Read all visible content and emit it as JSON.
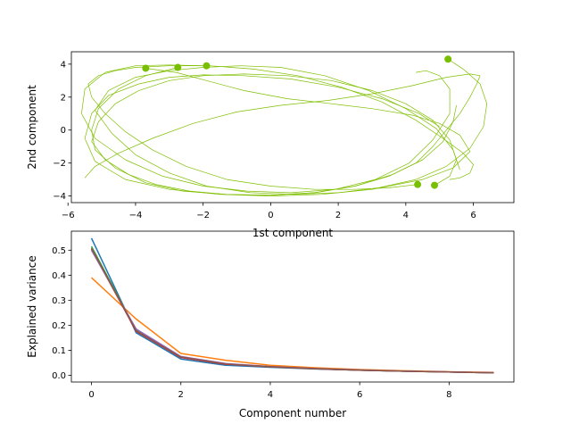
{
  "chart_data": [
    {
      "type": "line",
      "xlabel": "1st component",
      "ylabel": "2nd component",
      "xlim": [
        -5.9,
        7.2
      ],
      "ylim": [
        -4.4,
        4.75
      ],
      "xticks": [
        -6,
        -4,
        -2,
        0,
        2,
        4,
        6
      ],
      "yticks": [
        -4,
        -2,
        0,
        2,
        4
      ],
      "grid": false,
      "line_color": "#7fbf00",
      "marker_color": "#77bf00",
      "start_points": [
        {
          "x": -3.7,
          "y": 3.75
        },
        {
          "x": -2.75,
          "y": 3.8
        },
        {
          "x": -1.9,
          "y": 3.9
        },
        {
          "x": 5.25,
          "y": 4.3
        },
        {
          "x": 4.35,
          "y": -3.3
        },
        {
          "x": 4.85,
          "y": -3.35
        }
      ],
      "series": [
        {
          "x": [
            -3.7,
            -2.8,
            -1.9,
            -0.8,
            0.5,
            1.8,
            3.0,
            4.2,
            5.0,
            5.6,
            5.9,
            5.4,
            4.5,
            3.0,
            1.5,
            0.0,
            -1.5,
            -3.0,
            -4.3,
            -5.2,
            -5.5,
            -5.3,
            -4.8,
            -3.9,
            -3.0,
            -2.0,
            -0.8,
            0.6,
            2.0,
            3.3,
            4.4,
            5.0
          ],
          "y": [
            3.75,
            3.5,
            3.0,
            2.4,
            1.9,
            1.6,
            1.3,
            0.9,
            0.4,
            -0.3,
            -1.3,
            -2.3,
            -3.0,
            -3.6,
            -3.9,
            -4.0,
            -3.9,
            -3.6,
            -3.0,
            -1.9,
            -0.5,
            1.0,
            2.1,
            2.8,
            3.2,
            3.35,
            3.3,
            3.1,
            2.6,
            1.9,
            1.0,
            0.2
          ]
        },
        {
          "x": [
            -2.75,
            -3.7,
            -4.5,
            -5.1,
            -5.3,
            -5.2,
            -4.6,
            -3.7,
            -2.6,
            -1.3,
            0.0,
            1.3,
            2.5,
            3.5,
            4.3,
            4.8,
            5.2,
            5.6,
            5.9,
            6.1,
            6.2,
            5.9,
            5.2,
            4.2,
            3.0,
            1.7,
            0.3,
            -1.0,
            -2.3,
            -3.5,
            -4.5,
            -5.2,
            -5.5
          ],
          "y": [
            3.8,
            3.3,
            2.5,
            1.3,
            0.0,
            -1.2,
            -2.3,
            -3.2,
            -3.7,
            -3.9,
            -3.95,
            -3.8,
            -3.4,
            -2.8,
            -2.0,
            -1.0,
            0.0,
            1.0,
            2.0,
            2.8,
            3.3,
            3.4,
            3.2,
            2.7,
            2.2,
            1.8,
            1.5,
            1.1,
            0.4,
            -0.5,
            -1.4,
            -2.2,
            -2.9
          ]
        },
        {
          "x": [
            -1.9,
            -3.0,
            -4.0,
            -4.9,
            -5.5,
            -5.6,
            -5.2,
            -4.3,
            -3.2,
            -2.0,
            -0.7,
            0.6,
            1.9,
            3.1,
            4.1,
            4.8,
            5.3,
            5.3,
            5.0,
            4.6,
            4.3
          ],
          "y": [
            3.9,
            3.95,
            3.9,
            3.5,
            2.5,
            1.0,
            -0.5,
            -1.8,
            -2.8,
            -3.4,
            -3.7,
            -3.8,
            -3.6,
            -3.0,
            -2.0,
            -0.6,
            1.0,
            2.5,
            3.3,
            3.6,
            3.5
          ]
        },
        {
          "x": [
            5.25,
            5.7,
            6.2,
            6.4,
            6.3,
            5.9,
            5.2,
            4.3,
            3.2,
            2.0,
            0.7,
            -0.6,
            -1.9,
            -3.0,
            -4.0,
            -4.7,
            -5.2,
            -4.8,
            -4.0,
            -3.0,
            -2.0,
            -0.9,
            0.3,
            1.6,
            2.9,
            4.0,
            4.9,
            5.4,
            5.6
          ],
          "y": [
            4.3,
            3.7,
            2.8,
            1.6,
            0.2,
            -1.1,
            -2.2,
            -3.0,
            -3.5,
            -3.8,
            -3.9,
            -3.8,
            -3.4,
            -2.6,
            -1.5,
            -0.2,
            1.2,
            2.4,
            3.2,
            3.6,
            3.8,
            3.9,
            3.8,
            3.3,
            2.4,
            1.3,
            0.1,
            -1.2,
            -2.4
          ]
        },
        {
          "x": [
            4.35,
            3.5,
            2.5,
            1.3,
            0.0,
            -1.3,
            -2.5,
            -3.5,
            -4.3,
            -4.9,
            -5.3,
            -5.4,
            -5.1,
            -4.6,
            -4.0,
            -3.0,
            -1.8,
            -0.5,
            0.8,
            2.1,
            3.3,
            4.3,
            5.1,
            5.7,
            6.0,
            5.9,
            5.6,
            5.3
          ],
          "y": [
            -3.3,
            -3.5,
            -3.6,
            -3.6,
            -3.4,
            -3.0,
            -2.2,
            -1.2,
            -0.1,
            1.0,
            2.0,
            2.8,
            3.3,
            3.6,
            3.8,
            3.9,
            3.9,
            3.7,
            3.3,
            2.6,
            1.7,
            0.6,
            -0.5,
            -1.4,
            -2.1,
            -2.6,
            -2.9,
            -3.0
          ]
        },
        {
          "x": [
            4.85,
            5.3,
            5.5,
            5.3,
            4.8,
            4.0,
            3.0,
            1.8,
            0.5,
            -0.8,
            -2.0,
            -3.0,
            -3.9,
            -4.6,
            -5.1,
            -5.3,
            -4.9,
            -4.2,
            -3.4,
            -2.4,
            -1.3,
            0.0,
            1.3,
            2.5,
            3.6,
            4.5,
            5.1,
            5.4,
            5.5
          ],
          "y": [
            -3.35,
            -2.8,
            -1.8,
            -0.6,
            0.6,
            1.6,
            2.4,
            3.0,
            3.3,
            3.4,
            3.3,
            3.0,
            2.4,
            1.6,
            0.5,
            -0.7,
            -1.8,
            -2.7,
            -3.3,
            -3.7,
            -3.9,
            -3.95,
            -3.8,
            -3.4,
            -2.7,
            -1.8,
            -0.7,
            0.5,
            1.5
          ]
        }
      ]
    },
    {
      "type": "line",
      "xlabel": "Component number",
      "ylabel": "Explained variance",
      "xlim": [
        -0.45,
        9.45
      ],
      "ylim": [
        -0.027,
        0.576
      ],
      "xticks": [
        0,
        2,
        4,
        6,
        8
      ],
      "yticks": [
        0.0,
        0.1,
        0.2,
        0.3,
        0.4,
        0.5
      ],
      "ytick_labels": [
        "0.0",
        "0.1",
        "0.2",
        "0.3",
        "0.4",
        "0.5"
      ],
      "grid": false,
      "x": [
        0,
        1,
        2,
        3,
        4,
        5,
        6,
        7,
        8,
        9
      ],
      "series": [
        {
          "color": "#1f77b4",
          "values": [
            0.548,
            0.17,
            0.065,
            0.04,
            0.032,
            0.025,
            0.02,
            0.016,
            0.013,
            0.01
          ]
        },
        {
          "color": "#ff7f0e",
          "values": [
            0.39,
            0.225,
            0.087,
            0.06,
            0.04,
            0.03,
            0.023,
            0.018,
            0.014,
            0.011
          ]
        },
        {
          "color": "#2ca02c",
          "values": [
            0.515,
            0.18,
            0.072,
            0.045,
            0.034,
            0.026,
            0.02,
            0.016,
            0.013,
            0.01
          ]
        },
        {
          "color": "#d62728",
          "values": [
            0.505,
            0.176,
            0.071,
            0.044,
            0.034,
            0.026,
            0.02,
            0.016,
            0.013,
            0.01
          ]
        },
        {
          "color": "#9467bd",
          "values": [
            0.5,
            0.185,
            0.075,
            0.047,
            0.035,
            0.027,
            0.021,
            0.016,
            0.013,
            0.01
          ]
        },
        {
          "color": "#8c564b",
          "values": [
            0.508,
            0.178,
            0.073,
            0.045,
            0.034,
            0.026,
            0.02,
            0.016,
            0.013,
            0.01
          ]
        }
      ]
    }
  ]
}
